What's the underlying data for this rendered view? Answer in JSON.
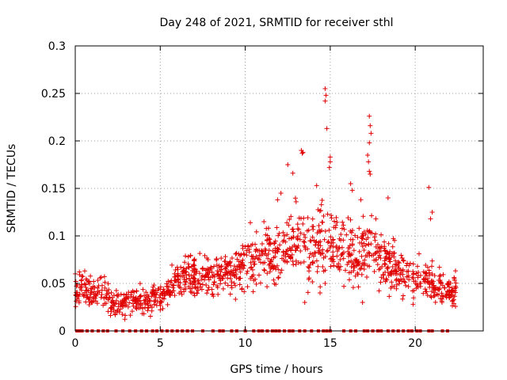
{
  "chart_data": {
    "type": "scatter",
    "title": "Day 248 of 2021, SRMTID for receiver sthl",
    "xlabel": "GPS time / hours",
    "ylabel": "SRMTID / TECUs",
    "xlim": [
      0,
      24
    ],
    "ylim": [
      0,
      0.3
    ],
    "x_ticks": [
      0,
      5,
      10,
      15,
      20
    ],
    "y_ticks": [
      0,
      0.05,
      0.1,
      0.15,
      0.2,
      0.25,
      0.3
    ],
    "x_tick_labels": [
      "0",
      "5",
      "10",
      "15",
      "20"
    ],
    "y_tick_labels": [
      "0",
      "0.05",
      "0.1",
      "0.15",
      "0.2",
      "0.25",
      "0.3"
    ],
    "grid": true,
    "marker": "plus",
    "colors": {
      "series": "#e00000",
      "grid": "#a0a0a0",
      "axis": "#000000"
    },
    "series": [
      {
        "name": "SRMTID",
        "envelope": [
          [
            0.0,
            0.04,
            0.015
          ],
          [
            0.5,
            0.045,
            0.015
          ],
          [
            1.0,
            0.04,
            0.012
          ],
          [
            1.5,
            0.045,
            0.015
          ],
          [
            2.0,
            0.03,
            0.012
          ],
          [
            2.5,
            0.028,
            0.012
          ],
          [
            3.0,
            0.032,
            0.012
          ],
          [
            3.5,
            0.033,
            0.013
          ],
          [
            4.0,
            0.03,
            0.012
          ],
          [
            4.5,
            0.032,
            0.012
          ],
          [
            5.0,
            0.035,
            0.012
          ],
          [
            5.5,
            0.045,
            0.013
          ],
          [
            6.0,
            0.05,
            0.013
          ],
          [
            6.5,
            0.06,
            0.015
          ],
          [
            7.0,
            0.055,
            0.015
          ],
          [
            7.5,
            0.055,
            0.015
          ],
          [
            8.0,
            0.06,
            0.017
          ],
          [
            8.5,
            0.062,
            0.017
          ],
          [
            9.0,
            0.065,
            0.018
          ],
          [
            9.5,
            0.065,
            0.018
          ],
          [
            10.0,
            0.07,
            0.018
          ],
          [
            10.5,
            0.075,
            0.02
          ],
          [
            11.0,
            0.08,
            0.02
          ],
          [
            11.5,
            0.08,
            0.02
          ],
          [
            12.0,
            0.085,
            0.022
          ],
          [
            12.5,
            0.09,
            0.025
          ],
          [
            13.0,
            0.095,
            0.028
          ],
          [
            13.5,
            0.09,
            0.028
          ],
          [
            14.0,
            0.085,
            0.028
          ],
          [
            14.5,
            0.09,
            0.03
          ],
          [
            15.0,
            0.09,
            0.028
          ],
          [
            15.5,
            0.085,
            0.025
          ],
          [
            16.0,
            0.085,
            0.025
          ],
          [
            16.5,
            0.08,
            0.025
          ],
          [
            17.0,
            0.09,
            0.028
          ],
          [
            17.5,
            0.09,
            0.028
          ],
          [
            18.0,
            0.075,
            0.022
          ],
          [
            18.5,
            0.07,
            0.02
          ],
          [
            19.0,
            0.065,
            0.018
          ],
          [
            19.5,
            0.062,
            0.018
          ],
          [
            20.0,
            0.055,
            0.017
          ],
          [
            20.5,
            0.055,
            0.017
          ],
          [
            21.0,
            0.05,
            0.015
          ],
          [
            21.5,
            0.045,
            0.015
          ],
          [
            22.0,
            0.04,
            0.012
          ],
          [
            22.4,
            0.045,
            0.013
          ]
        ],
        "outliers": [
          [
            14.7,
            0.255
          ],
          [
            14.75,
            0.248
          ],
          [
            14.7,
            0.242
          ],
          [
            14.8,
            0.213
          ],
          [
            15.0,
            0.183
          ],
          [
            15.0,
            0.178
          ],
          [
            14.95,
            0.172
          ],
          [
            17.3,
            0.226
          ],
          [
            17.35,
            0.216
          ],
          [
            17.4,
            0.208
          ],
          [
            17.3,
            0.198
          ],
          [
            17.2,
            0.185
          ],
          [
            17.25,
            0.178
          ],
          [
            17.3,
            0.168
          ],
          [
            17.35,
            0.165
          ],
          [
            13.3,
            0.19
          ],
          [
            13.35,
            0.187
          ],
          [
            13.4,
            0.188
          ],
          [
            12.5,
            0.175
          ],
          [
            12.8,
            0.166
          ],
          [
            20.8,
            0.151
          ],
          [
            21.0,
            0.125
          ],
          [
            20.9,
            0.118
          ],
          [
            18.4,
            0.14
          ],
          [
            16.2,
            0.155
          ],
          [
            16.3,
            0.148
          ],
          [
            14.2,
            0.153
          ],
          [
            12.1,
            0.145
          ],
          [
            11.9,
            0.138
          ],
          [
            16.8,
            0.138
          ],
          [
            13.5,
            0.03
          ],
          [
            14.4,
            0.04
          ],
          [
            16.9,
            0.03
          ],
          [
            11.1,
            0.115
          ],
          [
            10.3,
            0.114
          ]
        ],
        "zero_markers_x": [
          0.1,
          0.25,
          0.4,
          0.7,
          1.0,
          1.35,
          1.65,
          1.9,
          2.4,
          2.8,
          3.2,
          3.55,
          3.9,
          4.2,
          4.55,
          4.8,
          5.1,
          5.4,
          5.7,
          6.0,
          6.3,
          6.6,
          6.9,
          7.5,
          8.1,
          8.5,
          8.7,
          9.2,
          9.5,
          10.0,
          10.5,
          10.8,
          11.0,
          11.3,
          11.6,
          11.8,
          12.0,
          12.3,
          12.6,
          12.8,
          13.2,
          13.5,
          13.9,
          14.3,
          14.6,
          14.8,
          15.0,
          15.8,
          16.2,
          16.5,
          17.0,
          17.2,
          17.5,
          17.8,
          18.0,
          18.4,
          18.7,
          19.0,
          19.3,
          19.6,
          19.8,
          20.1,
          20.3,
          20.8,
          21.0,
          21.6,
          21.9
        ]
      }
    ]
  }
}
